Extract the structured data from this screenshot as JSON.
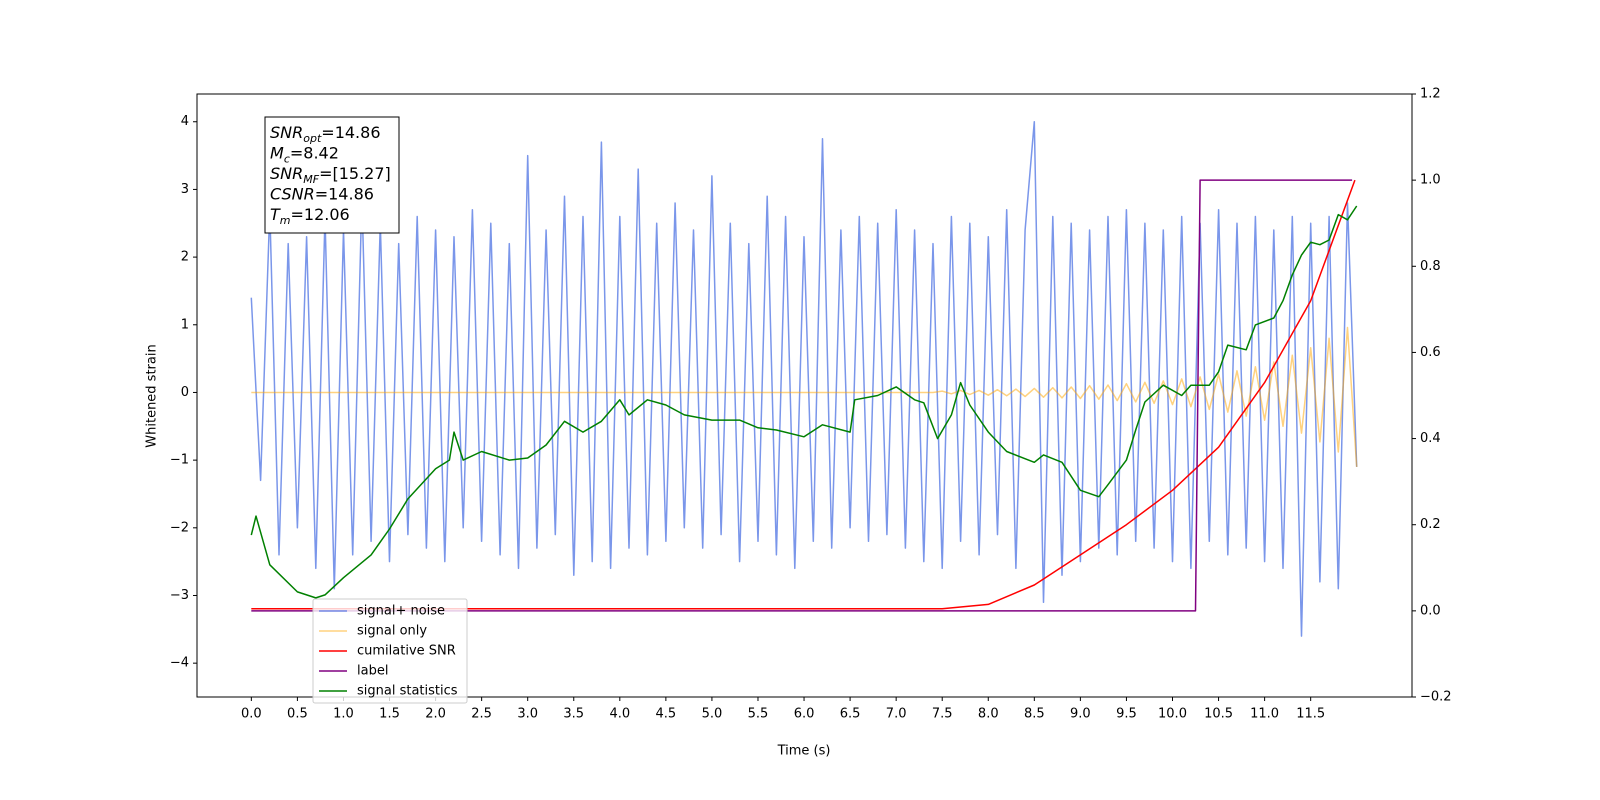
{
  "chart_data": {
    "type": "line",
    "xlabel": "Time (s)",
    "ylabel": "Whitened strain",
    "xlim": [
      -0.59,
      12.6
    ],
    "ylim": [
      -4.5,
      4.41
    ],
    "y2lim": [
      -0.2,
      1.2
    ],
    "xticks": [
      {
        "value": 0,
        "label": "0.0"
      },
      0.5,
      {
        "value": 1,
        "label": "1.0"
      },
      1.5,
      {
        "value": 2,
        "label": "2.0"
      },
      2.5,
      {
        "value": 3,
        "label": "3.0"
      },
      3.5,
      {
        "value": 4,
        "label": "4.0"
      },
      4.5,
      {
        "value": 5,
        "label": "5.0"
      },
      5.5,
      {
        "value": 6,
        "label": "6.0"
      },
      6.5,
      {
        "value": 7,
        "label": "7.0"
      },
      7.5,
      {
        "value": 8,
        "label": "8.0"
      },
      8.5,
      {
        "value": 9,
        "label": "9.0"
      },
      9.5,
      {
        "value": 10,
        "label": "10.0"
      },
      10.5,
      {
        "value": 11,
        "label": "11.0"
      },
      11.5
    ],
    "yticks": [
      {
        "value": -4,
        "label": "−4"
      },
      {
        "value": -3,
        "label": "−3"
      },
      {
        "value": -2,
        "label": "−2"
      },
      {
        "value": -1,
        "label": "−1"
      },
      0,
      1,
      2,
      3,
      4
    ],
    "y2ticks": [
      {
        "value": -0.2,
        "label": "−0.2"
      },
      {
        "value": 0,
        "label": "0.0"
      },
      0.2,
      0.4,
      0.6,
      0.8,
      {
        "value": 1,
        "label": "1.0"
      },
      1.2
    ],
    "annotations": [
      {
        "symbol": "SNR",
        "subscript": "opt",
        "text": "=14.86"
      },
      {
        "symbol": "M",
        "subscript": "c",
        "text": "=8.42"
      },
      {
        "symbol": "SNR",
        "subscript": "MF",
        "text": "=[15.27]"
      },
      {
        "symbol": "CSNR",
        "subscript": "",
        "text": "=14.86"
      },
      {
        "symbol": "T",
        "subscript": "m",
        "text": "=12.06"
      }
    ],
    "x": [
      0.0,
      0.1,
      0.2,
      0.3,
      0.4,
      0.5,
      0.6,
      0.7,
      0.8,
      0.9,
      1.0,
      1.1,
      1.2,
      1.3,
      1.4,
      1.5,
      1.6,
      1.7,
      1.8,
      1.9,
      2.0,
      2.1,
      2.2,
      2.3,
      2.4,
      2.5,
      2.6,
      2.7,
      2.8,
      2.9,
      3.0,
      3.1,
      3.2,
      3.3,
      3.4,
      3.5,
      3.6,
      3.7,
      3.8,
      3.9,
      4.0,
      4.1,
      4.2,
      4.3,
      4.4,
      4.5,
      4.6,
      4.7,
      4.8,
      4.9,
      5.0,
      5.1,
      5.2,
      5.3,
      5.4,
      5.5,
      5.6,
      5.7,
      5.8,
      5.9,
      6.0,
      6.1,
      6.2,
      6.3,
      6.4,
      6.5,
      6.6,
      6.7,
      6.8,
      6.9,
      7.0,
      7.1,
      7.2,
      7.3,
      7.4,
      7.5,
      7.6,
      7.7,
      7.8,
      7.9,
      8.0,
      8.1,
      8.2,
      8.3,
      8.4,
      8.5,
      8.6,
      8.7,
      8.8,
      8.9,
      9.0,
      9.1,
      9.2,
      9.3,
      9.4,
      9.5,
      9.6,
      9.7,
      9.8,
      9.9,
      10.0,
      10.1,
      10.2,
      10.3,
      10.4,
      10.5,
      10.6,
      10.7,
      10.8,
      10.9,
      11.0,
      11.1,
      11.2,
      11.3,
      11.4,
      11.5,
      11.6,
      11.7,
      11.8,
      11.9,
      12.0
    ],
    "series": [
      {
        "name": "signal+ noise",
        "color": "#4169e1",
        "alpha": 0.7,
        "width": 1.5,
        "values": [
          1.4,
          -1.3,
          2.7,
          -2.4,
          2.2,
          -2.0,
          2.3,
          -2.6,
          2.6,
          -2.9,
          2.4,
          -2.4,
          2.9,
          -2.2,
          2.5,
          -2.5,
          2.2,
          -2.1,
          2.6,
          -2.3,
          2.4,
          -2.5,
          2.3,
          -2.0,
          2.7,
          -2.2,
          2.5,
          -2.4,
          2.2,
          -2.6,
          3.5,
          -2.3,
          2.4,
          -2.1,
          2.9,
          -2.7,
          2.6,
          -2.5,
          3.7,
          -2.6,
          2.6,
          -2.3,
          3.3,
          -2.4,
          2.5,
          -2.2,
          2.8,
          -2.0,
          2.4,
          -2.3,
          3.2,
          -2.1,
          2.5,
          -2.5,
          2.2,
          -2.2,
          2.9,
          -2.4,
          2.6,
          -2.6,
          2.3,
          -2.2,
          3.75,
          -2.3,
          2.4,
          -2.0,
          2.6,
          -2.2,
          2.5,
          -2.1,
          2.7,
          -2.3,
          2.4,
          -2.5,
          2.2,
          -2.6,
          2.6,
          -2.2,
          2.5,
          -2.4,
          2.3,
          -2.1,
          2.7,
          -2.6,
          2.4,
          4.0,
          -3.1,
          2.6,
          -2.7,
          2.5,
          -2.5,
          2.4,
          -2.3,
          2.6,
          -2.4,
          2.7,
          -2.2,
          2.5,
          -2.3,
          2.4,
          -2.5,
          2.6,
          -2.6,
          2.5,
          -2.2,
          2.7,
          -2.4,
          2.5,
          -2.3,
          2.6,
          -2.5,
          2.4,
          -2.6,
          2.6,
          -3.6,
          2.5,
          -2.8,
          2.6,
          -2.9,
          2.8,
          -1.1
        ]
      },
      {
        "name": "signal only",
        "color": "#ffa500",
        "alpha": 0.5,
        "width": 1.5,
        "values": [
          0,
          0,
          0,
          0,
          0,
          0,
          0,
          0,
          0,
          0,
          0,
          0,
          0,
          0,
          0,
          0,
          0,
          0,
          0,
          0,
          0,
          0,
          0,
          0,
          0,
          0,
          0,
          0,
          0,
          0,
          0,
          0,
          0,
          0,
          0,
          0,
          0,
          0,
          0,
          0,
          0,
          0,
          0,
          0,
          0,
          0,
          0,
          0,
          0,
          0,
          0,
          0,
          0,
          0,
          0,
          0,
          0,
          0,
          0,
          0,
          0,
          0,
          0,
          0,
          0,
          0,
          0,
          0,
          0,
          0,
          0,
          0,
          0,
          0,
          0,
          0.02,
          -0.02,
          0.03,
          -0.03,
          0.03,
          -0.04,
          0.04,
          -0.05,
          0.05,
          -0.06,
          0.06,
          -0.07,
          0.07,
          -0.08,
          0.08,
          -0.09,
          0.1,
          -0.1,
          0.11,
          -0.12,
          0.13,
          -0.14,
          0.15,
          -0.16,
          0.17,
          -0.18,
          0.2,
          -0.21,
          0.23,
          -0.25,
          0.27,
          -0.29,
          0.32,
          -0.35,
          0.38,
          -0.41,
          0.45,
          -0.5,
          0.55,
          -0.6,
          0.66,
          -0.73,
          0.8,
          -0.88,
          0.96,
          -1.1
        ]
      },
      {
        "name": "cumilative SNR",
        "color": "#ff0000",
        "alpha": 1,
        "width": 1.5,
        "axis": "y2",
        "x": [
          0,
          7.5,
          8.0,
          8.5,
          9.0,
          9.5,
          10.0,
          10.5,
          11.0,
          11.5,
          11.98
        ],
        "values": [
          0.005,
          0.005,
          0.015,
          0.06,
          0.13,
          0.2,
          0.28,
          0.38,
          0.53,
          0.72,
          1.0
        ]
      },
      {
        "name": "label",
        "color": "#800080",
        "alpha": 1,
        "width": 1.5,
        "axis": "y2",
        "x": [
          0,
          10.25,
          10.3,
          11.95
        ],
        "values": [
          0,
          0,
          1,
          1
        ]
      },
      {
        "name": "signal statistics",
        "color": "#008000",
        "alpha": 1,
        "width": 1.5,
        "axis": "y2",
        "x": [
          0,
          0.05,
          0.2,
          0.5,
          0.7,
          0.8,
          1.0,
          1.3,
          1.5,
          1.7,
          2.0,
          2.15,
          2.2,
          2.3,
          2.5,
          2.8,
          3.0,
          3.2,
          3.4,
          3.6,
          3.8,
          4.0,
          4.1,
          4.3,
          4.5,
          4.7,
          5.0,
          5.3,
          5.5,
          5.7,
          6.0,
          6.2,
          6.5,
          6.55,
          6.8,
          7.0,
          7.2,
          7.3,
          7.45,
          7.6,
          7.7,
          7.8,
          8.0,
          8.2,
          8.5,
          8.6,
          8.8,
          9.0,
          9.2,
          9.3,
          9.5,
          9.6,
          9.7,
          9.9,
          10.1,
          10.2,
          10.4,
          10.5,
          10.6,
          10.8,
          10.9,
          11.1,
          11.2,
          11.3,
          11.4,
          11.5,
          11.6,
          11.7,
          11.8,
          11.9,
          12.0
        ],
        "values": [
          0.176,
          0.22,
          0.107,
          0.044,
          0.03,
          0.037,
          0.077,
          0.13,
          0.19,
          0.26,
          0.33,
          0.35,
          0.415,
          0.35,
          0.37,
          0.35,
          0.355,
          0.385,
          0.44,
          0.415,
          0.44,
          0.49,
          0.455,
          0.49,
          0.478,
          0.455,
          0.443,
          0.443,
          0.425,
          0.42,
          0.404,
          0.432,
          0.415,
          0.49,
          0.5,
          0.52,
          0.49,
          0.483,
          0.4,
          0.455,
          0.53,
          0.478,
          0.415,
          0.37,
          0.345,
          0.362,
          0.345,
          0.28,
          0.265,
          0.293,
          0.35,
          0.42,
          0.485,
          0.524,
          0.5,
          0.524,
          0.524,
          0.555,
          0.617,
          0.606,
          0.664,
          0.68,
          0.72,
          0.78,
          0.826,
          0.856,
          0.85,
          0.861,
          0.92,
          0.908,
          0.94
        ]
      }
    ]
  }
}
